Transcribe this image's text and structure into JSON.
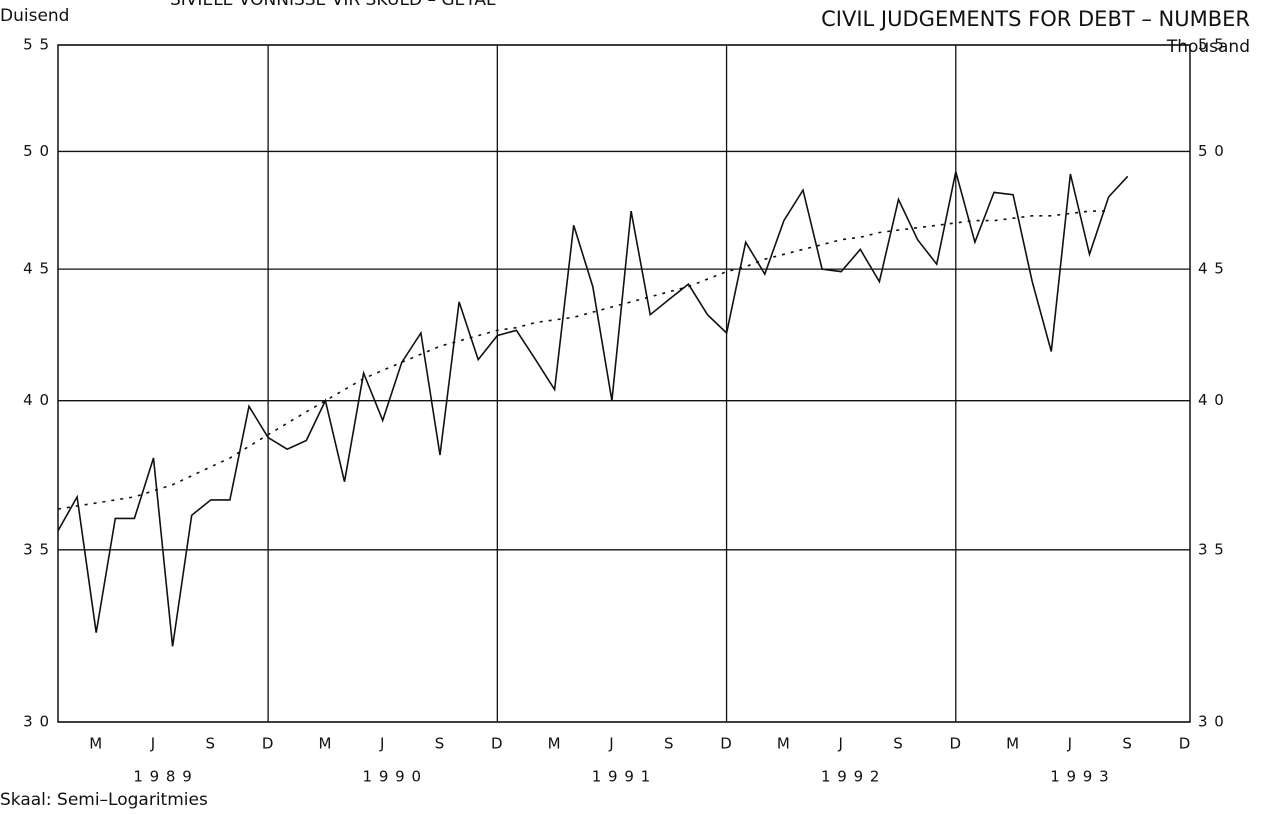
{
  "chart_data": {
    "type": "line",
    "title": "CIVIL JUDGEMENTS FOR DEBT – NUMBER",
    "title_left": "SIVIELE VONNISSE VIR SKULD – GETAL",
    "y_unit_left": "Duisend",
    "y_unit_right": "Thousand",
    "footnote": "Skaal: Semi–Logaritmies",
    "log_scale": true,
    "grid": true,
    "ylim": [
      30,
      55
    ],
    "yticks": [
      {
        "value": 30,
        "label": "3 0"
      },
      {
        "value": 35,
        "label": "3 5"
      },
      {
        "value": 40,
        "label": "4 0"
      },
      {
        "value": 45,
        "label": "4 5"
      },
      {
        "value": 50,
        "label": "5 0"
      },
      {
        "value": 55,
        "label": "5 5"
      }
    ],
    "year_labels": [
      "1 9 8 9",
      "1 9 9 0",
      "1 9 9 1",
      "1 9 9 2",
      "1 9 9 3"
    ],
    "categories": [
      null,
      null,
      "M",
      null,
      null,
      "J",
      null,
      null,
      "S",
      null,
      null,
      "D",
      null,
      null,
      "M",
      null,
      null,
      "J",
      null,
      null,
      "S",
      null,
      null,
      "D",
      null,
      null,
      "M",
      null,
      null,
      "J",
      null,
      null,
      "S",
      null,
      null,
      "D",
      null,
      null,
      "M",
      null,
      null,
      "J",
      null,
      null,
      "S",
      null,
      null,
      "D",
      null,
      null,
      "M",
      null,
      null,
      "J",
      null,
      null,
      "S",
      null,
      null,
      "D"
    ],
    "series": [
      {
        "color": "#111111",
        "dash": "none",
        "values": [
          35.6,
          36.7,
          32.5,
          36,
          36,
          38,
          32.1,
          36.1,
          36.6,
          36.6,
          39.8,
          38.7,
          38.3,
          38.6,
          40,
          37.2,
          41,
          39.3,
          41.4,
          42.5,
          38.1,
          43.7,
          41.5,
          42.4,
          42.6,
          41.5,
          40.4,
          46.8,
          44.3,
          40,
          47.4,
          43.2,
          43.8,
          44.4,
          43.2,
          42.5,
          46.1,
          44.8,
          47,
          48.3,
          45,
          44.9,
          45.8,
          44.5,
          47.9,
          46.2,
          45.2,
          49.1,
          46.1,
          48.2,
          48.1,
          44.5,
          41.8,
          49,
          45.6,
          48,
          48.9,
          null,
          null,
          null
        ]
      },
      {
        "color": "#111111",
        "dash": "3 6",
        "values": [
          36.3,
          36.4,
          36.5,
          36.6,
          36.7,
          36.9,
          37.1,
          37.4,
          37.7,
          38,
          38.4,
          38.8,
          39.2,
          39.6,
          40,
          40.4,
          40.8,
          41.1,
          41.4,
          41.7,
          42,
          42.2,
          42.4,
          42.6,
          42.7,
          42.9,
          43,
          43.1,
          43.3,
          43.5,
          43.7,
          43.9,
          44.1,
          44.3,
          44.6,
          44.9,
          45.1,
          45.4,
          45.6,
          45.8,
          46,
          46.2,
          46.3,
          46.5,
          46.6,
          46.7,
          46.8,
          46.9,
          47,
          47,
          47.1,
          47.2,
          47.2,
          47.3,
          47.4,
          47.4,
          null,
          null,
          null,
          null
        ]
      }
    ]
  }
}
